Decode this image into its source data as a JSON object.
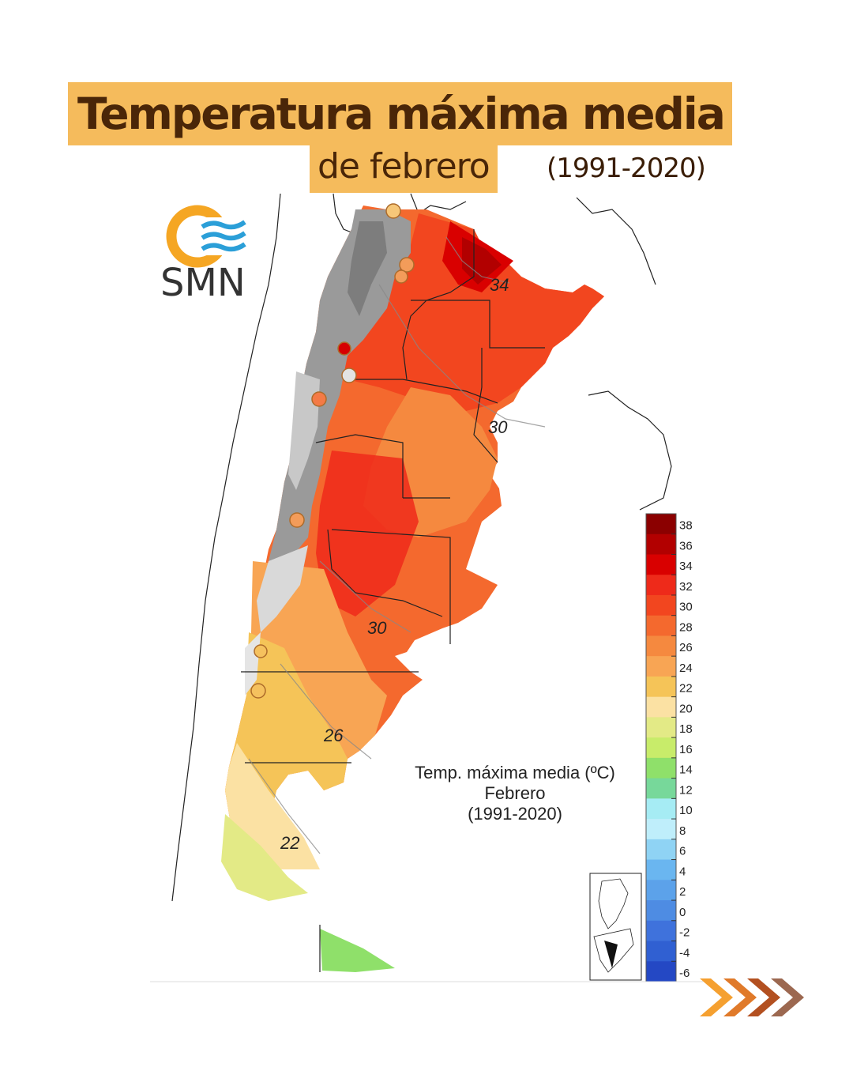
{
  "header": {
    "title_line1": "Temperatura máxima media",
    "title_line2": "de febrero",
    "period": "(1991-2020)"
  },
  "logo": {
    "text": "SMN",
    "icon": "smn-sun-waves-icon"
  },
  "map": {
    "caption_line1": "Temp. máxima media (ºC)",
    "caption_line2": "Febrero",
    "caption_line3": "(1991-2020)",
    "contour_labels": [
      "34",
      "30",
      "30",
      "26",
      "22"
    ]
  },
  "legend": {
    "ticks": [
      "38",
      "36",
      "34",
      "32",
      "30",
      "28",
      "26",
      "24",
      "22",
      "20",
      "18",
      "16",
      "14",
      "12",
      "10",
      "8",
      "6",
      "4",
      "2",
      "0",
      "-2",
      "-4",
      "-6"
    ],
    "colors": [
      "#8b0000",
      "#b20000",
      "#d90000",
      "#ee2a1a",
      "#f2461f",
      "#f4692e",
      "#f5893f",
      "#f8a554",
      "#f5c458",
      "#fbe1a3",
      "#e3ea86",
      "#c8ec6a",
      "#8fe06a",
      "#77d89a",
      "#a6ecf4",
      "#bfeefb",
      "#8fd3f4",
      "#6ab6f0",
      "#5ca2ea",
      "#4e8ce3",
      "#3f72dc",
      "#3060d2",
      "#2448c4"
    ]
  },
  "colors": {
    "accent": "#f5bb5c",
    "title_text": "#4a2608"
  }
}
